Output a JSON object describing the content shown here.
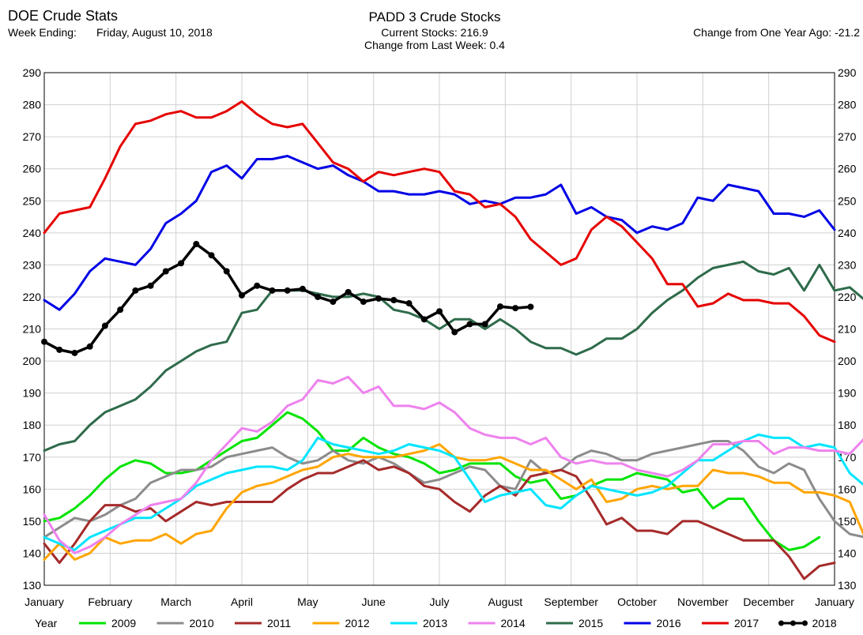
{
  "header": {
    "app_title": "DOE Crude Stats",
    "week_ending_label": "Week Ending:",
    "week_ending_value": "Friday, August 10, 2018",
    "chart_title": "PADD 3 Crude Stocks",
    "current_stocks": "Current Stocks: 216.9",
    "change_last_week": "Change from Last Week:  0.4",
    "change_year_ago": "Change from One Year Ago: -21.2"
  },
  "chart_data": {
    "type": "line",
    "title": "PADD 3 Crude Stocks",
    "x_ticks": [
      "January",
      "February",
      "March",
      "April",
      "May",
      "June",
      "July",
      "August",
      "September",
      "October",
      "November",
      "December",
      "January"
    ],
    "ylim": [
      130,
      290
    ],
    "y_ticks": [
      130,
      140,
      150,
      160,
      170,
      180,
      190,
      200,
      210,
      220,
      230,
      240,
      250,
      260,
      270,
      280,
      290
    ],
    "grid": true,
    "legend_title": "Year",
    "legend_position": "bottom",
    "series": [
      {
        "name": "2009",
        "color": "#00e400",
        "markers": false,
        "values": [
          150,
          151,
          154,
          158,
          163,
          167,
          169,
          168,
          165,
          165,
          166,
          169,
          172,
          175,
          176,
          180,
          184,
          182,
          178,
          172,
          172,
          176,
          173,
          171,
          170,
          168,
          165,
          166,
          168,
          168,
          168,
          164,
          162,
          163,
          157,
          158,
          161,
          163,
          163,
          165,
          164,
          163,
          159,
          160,
          154,
          157,
          157,
          150,
          144,
          141,
          142,
          145
        ]
      },
      {
        "name": "2010",
        "color": "#8c8c8c",
        "markers": false,
        "values": [
          145,
          148,
          151,
          150,
          152,
          155,
          157,
          162,
          164,
          166,
          166,
          167,
          170,
          171,
          172,
          173,
          170,
          168,
          169,
          172,
          169,
          168,
          170,
          168,
          165,
          162,
          163,
          165,
          167,
          166,
          161,
          160,
          169,
          165,
          166,
          170,
          172,
          171,
          169,
          169,
          171,
          172,
          173,
          174,
          175,
          175,
          172,
          167,
          165,
          168,
          166,
          157,
          150,
          146,
          145,
          145
        ]
      },
      {
        "name": "2011",
        "color": "#a52a2a",
        "markers": false,
        "values": [
          143,
          137,
          143,
          150,
          155,
          155,
          153,
          154,
          150,
          153,
          156,
          155,
          156,
          156,
          156,
          156,
          160,
          163,
          165,
          165,
          167,
          169,
          166,
          167,
          165,
          161,
          160,
          156,
          153,
          158,
          161,
          158,
          164,
          165,
          166,
          164,
          157,
          149,
          151,
          147,
          147,
          146,
          150,
          150,
          148,
          146,
          144,
          144,
          144,
          139,
          132,
          136,
          137
        ]
      },
      {
        "name": "2012",
        "color": "#ffa500",
        "markers": false,
        "values": [
          138,
          143,
          138,
          140,
          145,
          143,
          144,
          144,
          146,
          143,
          146,
          147,
          154,
          159,
          161,
          162,
          164,
          166,
          167,
          170,
          171,
          170,
          170,
          170,
          171,
          172,
          174,
          170,
          169,
          169,
          170,
          168,
          166,
          166,
          163,
          160,
          163,
          156,
          157,
          160,
          161,
          160,
          161,
          161,
          166,
          165,
          165,
          164,
          162,
          162,
          159,
          159,
          158,
          156,
          145
        ]
      },
      {
        "name": "2013",
        "color": "#00e5ff",
        "markers": false,
        "values": [
          145,
          143,
          141,
          145,
          147,
          149,
          151,
          151,
          154,
          157,
          161,
          163,
          165,
          166,
          167,
          167,
          166,
          169,
          176,
          174,
          173,
          172,
          171,
          172,
          174,
          173,
          172,
          170,
          163,
          156,
          158,
          159,
          160,
          155,
          154,
          158,
          161,
          160,
          159,
          158,
          159,
          161,
          165,
          169,
          169,
          172,
          175,
          177,
          176,
          176,
          173,
          174,
          173,
          165,
          161,
          157,
          152
        ]
      },
      {
        "name": "2014",
        "color": "#ee82ee",
        "markers": false,
        "values": [
          152,
          144,
          140,
          142,
          145,
          149,
          152,
          155,
          156,
          157,
          162,
          169,
          174,
          179,
          178,
          181,
          186,
          188,
          194,
          193,
          195,
          190,
          192,
          186,
          186,
          185,
          187,
          184,
          179,
          177,
          176,
          176,
          174,
          176,
          170,
          168,
          169,
          168,
          168,
          166,
          165,
          164,
          166,
          169,
          174,
          174,
          175,
          175,
          171,
          173,
          173,
          172,
          172,
          171,
          176,
          177
        ]
      },
      {
        "name": "2015",
        "color": "#2e6b4b",
        "markers": false,
        "values": [
          172,
          174,
          175,
          180,
          184,
          186,
          188,
          192,
          197,
          200,
          203,
          205,
          206,
          215,
          216,
          222,
          222,
          222,
          221,
          220,
          220,
          221,
          220,
          216,
          215,
          213,
          210,
          213,
          213,
          210,
          213,
          210,
          206,
          204,
          204,
          202,
          204,
          207,
          207,
          210,
          215,
          219,
          222,
          226,
          229,
          230,
          231,
          228,
          227,
          229,
          222,
          230,
          222,
          223,
          219
        ]
      },
      {
        "name": "2016",
        "color": "#0000e6",
        "markers": false,
        "values": [
          219,
          216,
          221,
          228,
          232,
          231,
          230,
          235,
          243,
          246,
          250,
          259,
          261,
          257,
          263,
          263,
          264,
          262,
          260,
          261,
          258,
          256,
          253,
          253,
          252,
          252,
          253,
          252,
          249,
          250,
          249,
          251,
          251,
          252,
          255,
          246,
          248,
          245,
          244,
          240,
          242,
          241,
          243,
          251,
          250,
          255,
          254,
          253,
          246,
          246,
          245,
          247,
          241
        ]
      },
      {
        "name": "2017",
        "color": "#e60000",
        "markers": false,
        "values": [
          240,
          246,
          247,
          248,
          257,
          267,
          274,
          275,
          277,
          278,
          276,
          276,
          278,
          281,
          277,
          274,
          273,
          274,
          268,
          262,
          260,
          256,
          259,
          258,
          259,
          260,
          259,
          253,
          252,
          248,
          249,
          245,
          238,
          234,
          230,
          232,
          241,
          245,
          242,
          237,
          232,
          224,
          224,
          217,
          218,
          221,
          219,
          219,
          218,
          218,
          214,
          208,
          206
        ]
      },
      {
        "name": "2018",
        "color": "#000000",
        "markers": true,
        "values": [
          206,
          203.5,
          202.5,
          204.5,
          211,
          216,
          222,
          223.5,
          228,
          230.5,
          236.5,
          233,
          228,
          220.5,
          223.5,
          222,
          222,
          222.5,
          220,
          218.5,
          221.5,
          218.5,
          219.5,
          219,
          218,
          213,
          215.5,
          209,
          211.5,
          211.5,
          217,
          216.5,
          216.9
        ]
      }
    ]
  }
}
